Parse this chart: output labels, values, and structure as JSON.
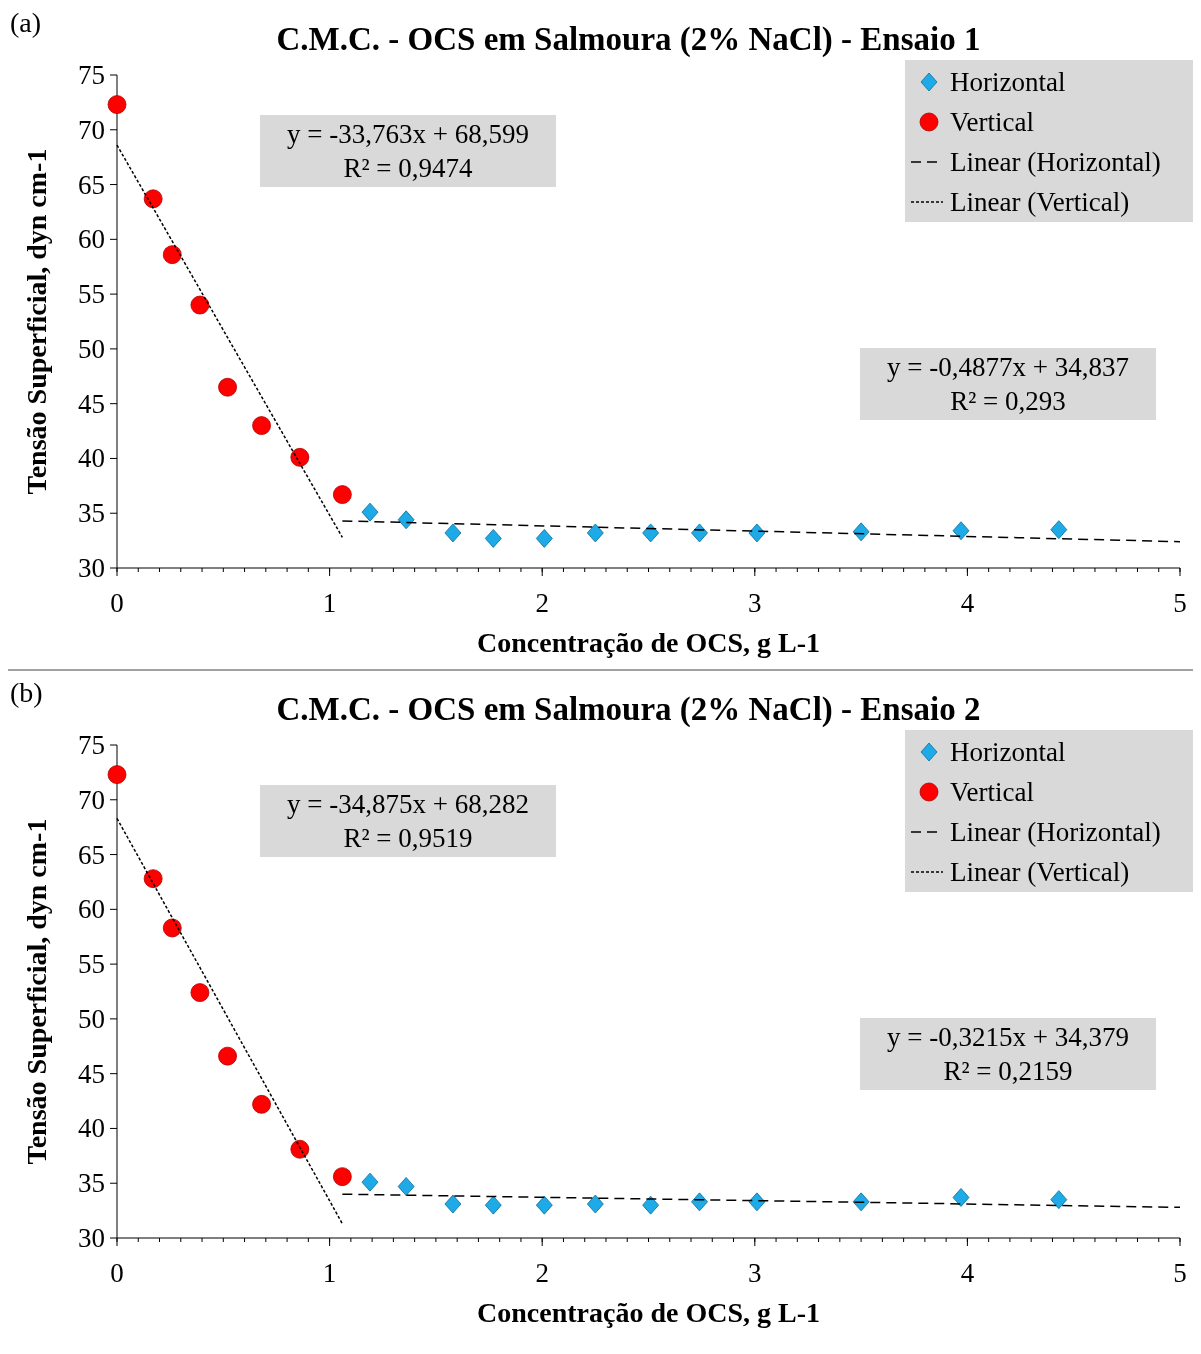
{
  "chart_data": [
    {
      "type": "scatter",
      "title": "C.M.C. - OCS em Salmoura (2% NaCl) - Ensaio 1",
      "xlabel": "Concentração de OCS, g L-1",
      "ylabel": "Tensão Superficial, dyn cm-1",
      "xlim": [
        0,
        5
      ],
      "xticks": [
        0,
        1,
        2,
        3,
        4,
        5
      ],
      "ylim": [
        30,
        75
      ],
      "yticks": [
        30,
        35,
        40,
        45,
        50,
        55,
        60,
        65,
        70,
        75
      ],
      "legend": "top right",
      "grid": false,
      "annotations": [
        "(a)",
        "y = -33,763x + 68,599\nR² = 0,9474",
        "y = -0,4877x + 34,837\nR² = 0,293"
      ],
      "series": [
        {
          "name": "Horizontal",
          "marker": "diamond",
          "color": "#1eaae6",
          "x": [
            1.19,
            1.36,
            1.58,
            1.77,
            2.01,
            2.25,
            2.51,
            2.74,
            3.01,
            3.5,
            3.97,
            4.43
          ],
          "values": [
            35.1,
            34.4,
            33.2,
            32.7,
            32.7,
            33.2,
            33.2,
            33.2,
            33.2,
            33.3,
            33.4,
            33.5
          ]
        },
        {
          "name": "Vertical",
          "marker": "circle",
          "color": "#ff0000",
          "x": [
            0,
            0.17,
            0.26,
            0.39,
            0.52,
            0.68,
            0.86,
            1.06
          ],
          "values": [
            72.3,
            63.7,
            58.6,
            54.0,
            46.5,
            43.0,
            40.1,
            36.7
          ]
        },
        {
          "name": "Linear (Horizontal)",
          "type": "line",
          "line_style": "dashed",
          "color": "#000000",
          "x": [
            1.06,
            5
          ],
          "values": [
            34.3,
            32.4
          ]
        },
        {
          "name": "Linear (Vertical)",
          "type": "line",
          "line_style": "dotted",
          "color": "#000000",
          "x": [
            0,
            1.06
          ],
          "values": [
            68.6,
            32.8
          ]
        }
      ]
    },
    {
      "type": "scatter",
      "title": "C.M.C. - OCS em Salmoura (2% NaCl) - Ensaio 2",
      "xlabel": "Concentração de OCS, g L-1",
      "ylabel": "Tensão Superficial, dyn cm-1",
      "xlim": [
        0,
        5
      ],
      "xticks": [
        0,
        1,
        2,
        3,
        4,
        5
      ],
      "ylim": [
        30,
        75
      ],
      "yticks": [
        30,
        35,
        40,
        45,
        50,
        55,
        60,
        65,
        70,
        75
      ],
      "legend": "top right",
      "grid": false,
      "annotations": [
        "(b)",
        "y = -34,875x + 68,282\nR² = 0,9519",
        "y = -0,3215x + 34,379\nR² = 0,2159"
      ],
      "series": [
        {
          "name": "Horizontal",
          "marker": "diamond",
          "color": "#1eaae6",
          "x": [
            1.19,
            1.36,
            1.58,
            1.77,
            2.01,
            2.25,
            2.51,
            2.74,
            3.01,
            3.5,
            3.97,
            4.43
          ],
          "values": [
            35.1,
            34.7,
            33.1,
            33.0,
            33.0,
            33.1,
            33.0,
            33.3,
            33.3,
            33.3,
            33.7,
            33.5
          ]
        },
        {
          "name": "Vertical",
          "marker": "circle",
          "color": "#ff0000",
          "x": [
            0,
            0.17,
            0.26,
            0.39,
            0.52,
            0.68,
            0.86,
            1.06
          ],
          "values": [
            72.3,
            62.8,
            58.3,
            52.4,
            46.6,
            42.2,
            38.1,
            35.6
          ]
        },
        {
          "name": "Linear (Horizontal)",
          "type": "line",
          "line_style": "dashed",
          "color": "#000000",
          "x": [
            1.06,
            5
          ],
          "values": [
            34.0,
            32.8
          ]
        },
        {
          "name": "Linear (Vertical)",
          "type": "line",
          "line_style": "dotted",
          "color": "#000000",
          "x": [
            0,
            1.06
          ],
          "values": [
            68.3,
            31.3
          ]
        }
      ]
    }
  ]
}
